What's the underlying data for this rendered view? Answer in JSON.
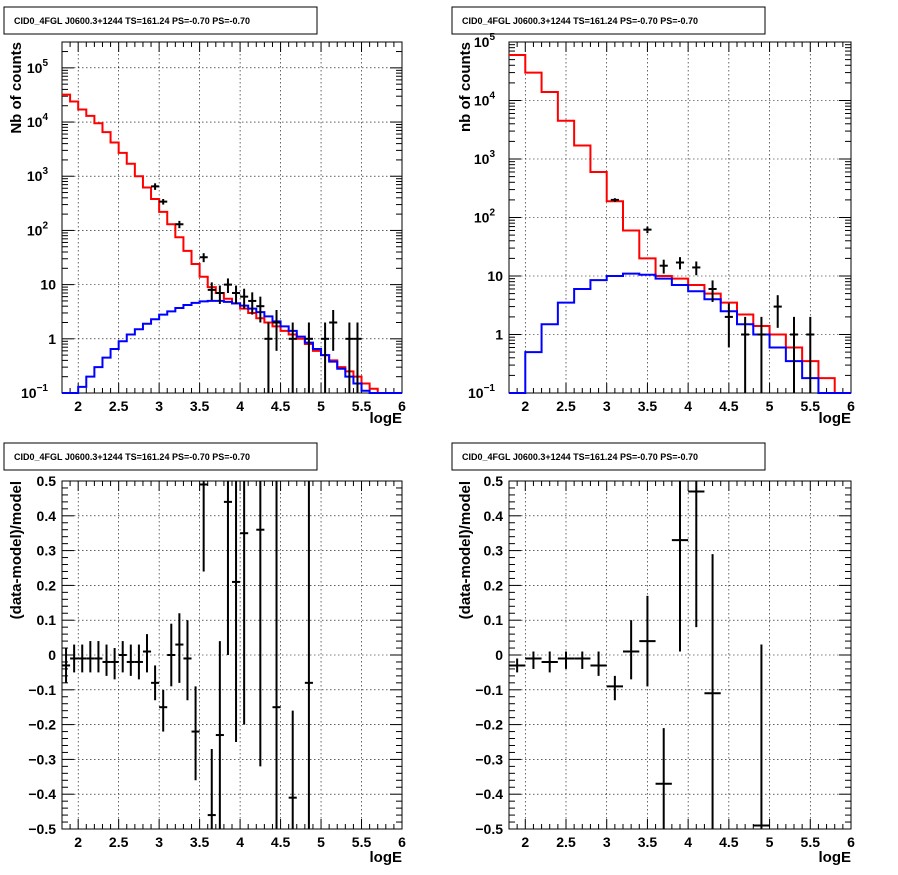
{
  "chart_data": [
    {
      "type": "histogram",
      "title": "CID0_4FGL J0600.3+1244 TS=161.24 PS=-0.70 PS=-0.70",
      "xlabel": "logE",
      "ylabel": "Nb of counts",
      "xlim": [
        1.8,
        6.0
      ],
      "ylim": [
        0.1,
        300000
      ],
      "log_y": true,
      "grid": true,
      "x_ticks": [
        "2",
        "2.5",
        "3",
        "3.5",
        "4",
        "4.5",
        "5",
        "5.5",
        "6"
      ],
      "y_ticks": [
        {
          "value": 0.1,
          "label": "10",
          "exp": "−1"
        },
        {
          "value": 1,
          "label": "1",
          "exp": ""
        },
        {
          "value": 10,
          "label": "10",
          "exp": ""
        },
        {
          "value": 100,
          "label": "10",
          "exp": "2"
        },
        {
          "value": 1000,
          "label": "10",
          "exp": "3"
        },
        {
          "value": 10000,
          "label": "10",
          "exp": "4"
        },
        {
          "value": 100000,
          "label": "10",
          "exp": "5"
        }
      ],
      "bin_edges": [
        1.8,
        1.9,
        2.0,
        2.1,
        2.2,
        2.3,
        2.4,
        2.5,
        2.6,
        2.7,
        2.8,
        2.9,
        3.0,
        3.1,
        3.2,
        3.3,
        3.4,
        3.5,
        3.6,
        3.7,
        3.8,
        3.9,
        4.0,
        4.1,
        4.2,
        4.3,
        4.4,
        4.5,
        4.6,
        4.7,
        4.8,
        4.9,
        5.0,
        5.1,
        5.2,
        5.3,
        5.4,
        5.5,
        5.6,
        5.7,
        5.8,
        5.9,
        6.0
      ],
      "series": [
        {
          "color": "#ff0000",
          "style": "step",
          "values": [
            32000,
            24000,
            17000,
            13000,
            9500,
            6500,
            4200,
            2700,
            1700,
            1000,
            620,
            380,
            220,
            130,
            75,
            42,
            24,
            14,
            9,
            7,
            5.5,
            4.5,
            3.6,
            3.0,
            2.4,
            2.0,
            1.7,
            1.4,
            1.2,
            1.0,
            0.8,
            0.6,
            0.5,
            0.4,
            0.3,
            0.25,
            0.2,
            0.15,
            0.12,
            0.1,
            0.1,
            0.1
          ]
        },
        {
          "color": "#0000ff",
          "style": "step",
          "values": [
            0.1,
            0.1,
            0.13,
            0.2,
            0.3,
            0.45,
            0.65,
            0.9,
            1.2,
            1.5,
            1.9,
            2.3,
            2.8,
            3.2,
            3.7,
            4.2,
            4.6,
            4.9,
            5.0,
            5.0,
            4.8,
            4.5,
            4.1,
            3.6,
            3.1,
            2.6,
            2.1,
            1.7,
            1.4,
            1.1,
            0.85,
            0.65,
            0.5,
            0.38,
            0.28,
            0.2,
            0.15,
            0.11,
            0.1,
            0.1,
            0.1,
            0.1
          ]
        },
        {
          "color": "#000000",
          "style": "errorbar",
          "points": [
            {
              "x": 2.95,
              "y": 650,
              "lo": 560,
              "hi": 740
            },
            {
              "x": 3.05,
              "y": 340,
              "lo": 300,
              "hi": 380
            },
            {
              "x": 3.25,
              "y": 130,
              "lo": 110,
              "hi": 150
            },
            {
              "x": 3.55,
              "y": 32,
              "lo": 26,
              "hi": 38
            },
            {
              "x": 3.65,
              "y": 8,
              "lo": 5.2,
              "hi": 11
            },
            {
              "x": 3.75,
              "y": 7,
              "lo": 4.4,
              "hi": 9.6
            },
            {
              "x": 3.85,
              "y": 10,
              "lo": 7,
              "hi": 13
            },
            {
              "x": 3.95,
              "y": 7,
              "lo": 4.4,
              "hi": 9.6
            },
            {
              "x": 4.05,
              "y": 6,
              "lo": 3.6,
              "hi": 8.4
            },
            {
              "x": 4.15,
              "y": 5,
              "lo": 2.8,
              "hi": 7.2
            },
            {
              "x": 4.25,
              "y": 4,
              "lo": 2,
              "hi": 6
            },
            {
              "x": 4.35,
              "y": 1,
              "lo": 0.1,
              "hi": 2
            },
            {
              "x": 4.45,
              "y": 2,
              "lo": 0.6,
              "hi": 3.4
            },
            {
              "x": 4.65,
              "y": 1,
              "lo": 0.1,
              "hi": 2
            },
            {
              "x": 4.85,
              "y": 1,
              "lo": 0.1,
              "hi": 2
            },
            {
              "x": 5.05,
              "y": 1,
              "lo": 0.1,
              "hi": 2
            },
            {
              "x": 5.15,
              "y": 2,
              "lo": 0.6,
              "hi": 3.4
            },
            {
              "x": 5.35,
              "y": 1,
              "lo": 0.1,
              "hi": 2
            },
            {
              "x": 5.45,
              "y": 1,
              "lo": 0.1,
              "hi": 2
            }
          ]
        }
      ]
    },
    {
      "type": "histogram",
      "title": "CID0_4FGL J0600.3+1244 TS=161.24 PS=-0.70 PS=-0.70",
      "xlabel": "logE",
      "ylabel": "nb of counts",
      "xlim": [
        1.8,
        6.0
      ],
      "ylim": [
        0.1,
        100000
      ],
      "log_y": true,
      "grid": true,
      "x_ticks": [
        "2",
        "2.5",
        "3",
        "3.5",
        "4",
        "4.5",
        "5",
        "5.5",
        "6"
      ],
      "y_ticks": [
        {
          "value": 0.1,
          "label": "10",
          "exp": "−1"
        },
        {
          "value": 1,
          "label": "1",
          "exp": ""
        },
        {
          "value": 10,
          "label": "10",
          "exp": ""
        },
        {
          "value": 100,
          "label": "10",
          "exp": "2"
        },
        {
          "value": 1000,
          "label": "10",
          "exp": "3"
        },
        {
          "value": 10000,
          "label": "10",
          "exp": "4"
        },
        {
          "value": 100000,
          "label": "10",
          "exp": "5"
        }
      ],
      "bin_edges": [
        1.8,
        2.0,
        2.2,
        2.4,
        2.6,
        2.8,
        3.0,
        3.2,
        3.4,
        3.6,
        3.8,
        4.0,
        4.2,
        4.4,
        4.6,
        4.8,
        5.0,
        5.2,
        5.4,
        5.6,
        5.8,
        6.0
      ],
      "series": [
        {
          "color": "#ff0000",
          "style": "step",
          "values": [
            60000,
            30000,
            14000,
            4500,
            1700,
            600,
            190,
            60,
            20,
            10,
            9,
            7,
            5,
            3.5,
            2.2,
            1.4,
            1.0,
            0.6,
            0.35,
            0.18,
            0.1
          ]
        },
        {
          "color": "#0000ff",
          "style": "step",
          "values": [
            0.1,
            0.5,
            1.5,
            3.5,
            6,
            8.5,
            10,
            11,
            10.5,
            9,
            7,
            5.5,
            4,
            2.5,
            1.5,
            1,
            0.6,
            0.35,
            0.18,
            0.1,
            0.1
          ]
        },
        {
          "color": "#000000",
          "style": "errorbar",
          "points": [
            {
              "x": 3.1,
              "y": 200,
              "lo": 186,
              "hi": 214
            },
            {
              "x": 3.5,
              "y": 62,
              "lo": 54,
              "hi": 70
            },
            {
              "x": 3.7,
              "y": 15,
              "lo": 11,
              "hi": 19
            },
            {
              "x": 3.9,
              "y": 17,
              "lo": 13,
              "hi": 21
            },
            {
              "x": 4.1,
              "y": 14,
              "lo": 10.3,
              "hi": 17.7
            },
            {
              "x": 4.3,
              "y": 6,
              "lo": 3.6,
              "hi": 8.4
            },
            {
              "x": 4.5,
              "y": 2,
              "lo": 0.6,
              "hi": 3.4
            },
            {
              "x": 4.7,
              "y": 1,
              "lo": 0.1,
              "hi": 2
            },
            {
              "x": 4.9,
              "y": 1,
              "lo": 0.1,
              "hi": 2
            },
            {
              "x": 5.1,
              "y": 3,
              "lo": 1.3,
              "hi": 4.7
            },
            {
              "x": 5.3,
              "y": 1,
              "lo": 0.1,
              "hi": 2
            },
            {
              "x": 5.5,
              "y": 1,
              "lo": 0.1,
              "hi": 2
            }
          ]
        }
      ]
    },
    {
      "type": "scatter",
      "title": "CID0_4FGL J0600.3+1244 TS=161.24 PS=-0.70 PS=-0.70",
      "xlabel": "logE",
      "ylabel": "(data-model)/model",
      "xlim": [
        1.8,
        6.0
      ],
      "ylim": [
        -0.5,
        0.5
      ],
      "log_y": false,
      "grid": true,
      "x_ticks": [
        "2",
        "2.5",
        "3",
        "3.5",
        "4",
        "4.5",
        "5",
        "5.5",
        "6"
      ],
      "y_ticks": [
        {
          "value": -0.5,
          "label": "−0.5",
          "exp": ""
        },
        {
          "value": -0.4,
          "label": "−0.4",
          "exp": ""
        },
        {
          "value": -0.3,
          "label": "−0.3",
          "exp": ""
        },
        {
          "value": -0.2,
          "label": "−0.2",
          "exp": ""
        },
        {
          "value": -0.1,
          "label": "−0.1",
          "exp": ""
        },
        {
          "value": 0,
          "label": "0",
          "exp": ""
        },
        {
          "value": 0.1,
          "label": "0.1",
          "exp": ""
        },
        {
          "value": 0.2,
          "label": "0.2",
          "exp": ""
        },
        {
          "value": 0.3,
          "label": "0.3",
          "exp": ""
        },
        {
          "value": 0.4,
          "label": "0.4",
          "exp": ""
        },
        {
          "value": 0.5,
          "label": "0.5",
          "exp": ""
        }
      ],
      "series": [
        {
          "color": "#000000",
          "style": "errorbar",
          "halfwidth": 0.05,
          "points": [
            {
              "x": 1.85,
              "y": -0.03,
              "lo": -0.08,
              "hi": 0.02
            },
            {
              "x": 1.95,
              "y": -0.01,
              "lo": -0.05,
              "hi": 0.03
            },
            {
              "x": 2.05,
              "y": -0.01,
              "lo": -0.05,
              "hi": 0.03
            },
            {
              "x": 2.15,
              "y": -0.01,
              "lo": -0.05,
              "hi": 0.04
            },
            {
              "x": 2.25,
              "y": -0.01,
              "lo": -0.05,
              "hi": 0.04
            },
            {
              "x": 2.35,
              "y": -0.02,
              "lo": -0.06,
              "hi": 0.03
            },
            {
              "x": 2.45,
              "y": -0.02,
              "lo": -0.07,
              "hi": 0.02
            },
            {
              "x": 2.55,
              "y": 0.0,
              "lo": -0.05,
              "hi": 0.04
            },
            {
              "x": 2.65,
              "y": -0.02,
              "lo": -0.06,
              "hi": 0.03
            },
            {
              "x": 2.75,
              "y": -0.02,
              "lo": -0.07,
              "hi": 0.03
            },
            {
              "x": 2.85,
              "y": 0.01,
              "lo": -0.05,
              "hi": 0.06
            },
            {
              "x": 2.95,
              "y": -0.08,
              "lo": -0.13,
              "hi": -0.03
            },
            {
              "x": 3.05,
              "y": -0.15,
              "lo": -0.22,
              "hi": -0.1
            },
            {
              "x": 3.15,
              "y": 0.0,
              "lo": -0.09,
              "hi": 0.09
            },
            {
              "x": 3.25,
              "y": 0.03,
              "lo": -0.08,
              "hi": 0.12
            },
            {
              "x": 3.35,
              "y": -0.01,
              "lo": -0.13,
              "hi": 0.1
            },
            {
              "x": 3.45,
              "y": -0.22,
              "lo": -0.36,
              "hi": -0.09
            },
            {
              "x": 3.55,
              "y": 0.49,
              "lo": 0.24,
              "hi": 0.5
            },
            {
              "x": 3.65,
              "y": -0.46,
              "lo": -0.5,
              "hi": -0.27
            },
            {
              "x": 3.75,
              "y": -0.23,
              "lo": -0.5,
              "hi": 0.04
            },
            {
              "x": 3.85,
              "y": 0.44,
              "lo": 0.0,
              "hi": 0.5
            },
            {
              "x": 3.95,
              "y": 0.21,
              "lo": -0.25,
              "hi": 0.5
            },
            {
              "x": 4.05,
              "y": 0.35,
              "lo": -0.2,
              "hi": 0.5
            },
            {
              "x": 4.25,
              "y": 0.36,
              "lo": -0.32,
              "hi": 0.5
            },
            {
              "x": 4.45,
              "y": -0.15,
              "lo": -0.5,
              "hi": 0.5
            },
            {
              "x": 4.65,
              "y": -0.41,
              "lo": -0.5,
              "hi": -0.16
            },
            {
              "x": 4.85,
              "y": -0.08,
              "lo": -0.5,
              "hi": 0.5
            }
          ]
        }
      ]
    },
    {
      "type": "scatter",
      "title": "CID0_4FGL J0600.3+1244 TS=161.24 PS=-0.70 PS=-0.70",
      "xlabel": "logE",
      "ylabel": "(data-model)/model",
      "xlim": [
        1.8,
        6.0
      ],
      "ylim": [
        -0.5,
        0.5
      ],
      "log_y": false,
      "grid": true,
      "x_ticks": [
        "2",
        "2.5",
        "3",
        "3.5",
        "4",
        "4.5",
        "5",
        "5.5",
        "6"
      ],
      "y_ticks": [
        {
          "value": -0.5,
          "label": "−0.5",
          "exp": ""
        },
        {
          "value": -0.4,
          "label": "−0.4",
          "exp": ""
        },
        {
          "value": -0.3,
          "label": "−0.3",
          "exp": ""
        },
        {
          "value": -0.2,
          "label": "−0.2",
          "exp": ""
        },
        {
          "value": -0.1,
          "label": "−0.1",
          "exp": ""
        },
        {
          "value": 0,
          "label": "0",
          "exp": ""
        },
        {
          "value": 0.1,
          "label": "0.1",
          "exp": ""
        },
        {
          "value": 0.2,
          "label": "0.2",
          "exp": ""
        },
        {
          "value": 0.3,
          "label": "0.3",
          "exp": ""
        },
        {
          "value": 0.4,
          "label": "0.4",
          "exp": ""
        },
        {
          "value": 0.5,
          "label": "0.5",
          "exp": ""
        }
      ],
      "series": [
        {
          "color": "#000000",
          "style": "errorbar",
          "halfwidth": 0.1,
          "points": [
            {
              "x": 1.9,
              "y": -0.03,
              "lo": -0.05,
              "hi": -0.01
            },
            {
              "x": 2.1,
              "y": -0.01,
              "lo": -0.04,
              "hi": 0.01
            },
            {
              "x": 2.3,
              "y": -0.02,
              "lo": -0.05,
              "hi": 0.01
            },
            {
              "x": 2.5,
              "y": -0.01,
              "lo": -0.04,
              "hi": 0.01
            },
            {
              "x": 2.7,
              "y": -0.01,
              "lo": -0.04,
              "hi": 0.01
            },
            {
              "x": 2.9,
              "y": -0.03,
              "lo": -0.06,
              "hi": 0.01
            },
            {
              "x": 3.1,
              "y": -0.09,
              "lo": -0.13,
              "hi": -0.06
            },
            {
              "x": 3.3,
              "y": 0.01,
              "lo": -0.07,
              "hi": 0.1
            },
            {
              "x": 3.5,
              "y": 0.04,
              "lo": -0.09,
              "hi": 0.17
            },
            {
              "x": 3.7,
              "y": -0.37,
              "lo": -0.5,
              "hi": -0.21
            },
            {
              "x": 3.9,
              "y": 0.33,
              "lo": 0.01,
              "hi": 0.5
            },
            {
              "x": 4.1,
              "y": 0.47,
              "lo": 0.08,
              "hi": 0.5
            },
            {
              "x": 4.3,
              "y": -0.11,
              "lo": -0.5,
              "hi": 0.29
            },
            {
              "x": 4.9,
              "y": -0.49,
              "lo": -0.5,
              "hi": 0.03
            }
          ]
        }
      ]
    }
  ]
}
